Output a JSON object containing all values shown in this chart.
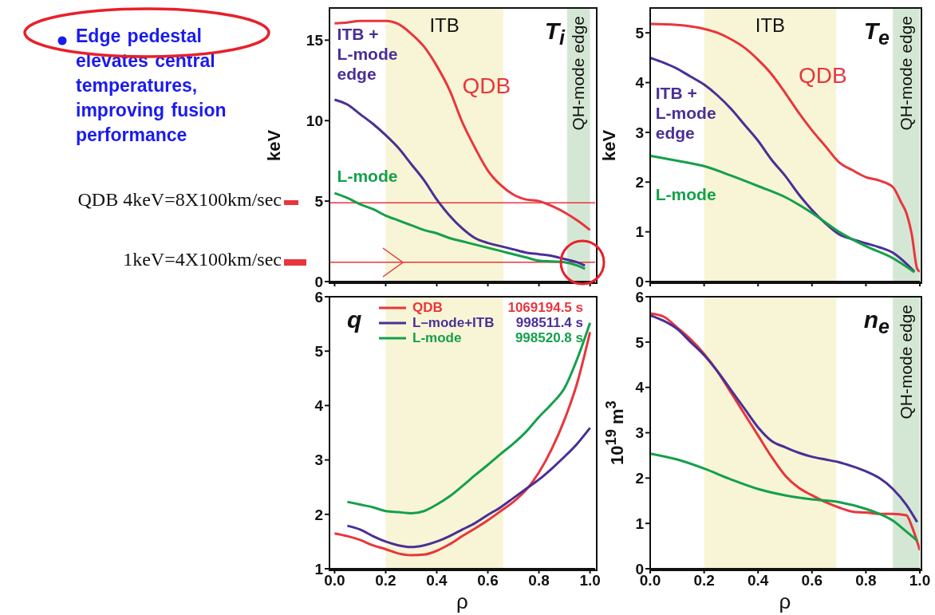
{
  "chart_data": [
    {
      "type": "line",
      "title": "T$_{i}$",
      "ylabel": "keV",
      "xlim": [
        -0.02,
        1.02
      ],
      "xticks": [
        0,
        0.2,
        0.4,
        0.6,
        0.8,
        1
      ],
      "ylim": [
        0,
        17
      ],
      "yticks": [
        0,
        5,
        10,
        15
      ],
      "tick_labels": "y",
      "grid": false,
      "legend": false,
      "bands": [
        {
          "axis": "x",
          "from": 0.2,
          "to": 0.66,
          "label": "ITB",
          "color": "#f7f5d6"
        },
        {
          "axis": "x",
          "from": 0.91,
          "to": 1.0,
          "label": "QH-mode edge",
          "color": "#d4e7d4"
        }
      ],
      "ref_lines": [
        {
          "axis": "y",
          "value": 4.9,
          "color": "#e8363c"
        },
        {
          "axis": "y",
          "value": 1.2,
          "color": "#e8363c"
        }
      ],
      "annotations": [
        "Edge  pedestal elevates  central temperatures, improving fusion performance",
        "QDB 4keV=8X100km/sec",
        "1keV=4X100km/sec"
      ],
      "series": [
        {
          "name": "QDB",
          "color": "#e8363c",
          "x": [
            0,
            0.05,
            0.1,
            0.15,
            0.2,
            0.25,
            0.3,
            0.35,
            0.4,
            0.45,
            0.5,
            0.55,
            0.6,
            0.65,
            0.7,
            0.75,
            0.8,
            0.85,
            0.9,
            0.95,
            1.0
          ],
          "values": [
            16.05,
            16.1,
            16.2,
            16.2,
            16.2,
            16.0,
            15.4,
            14.6,
            13.4,
            11.9,
            9.9,
            8.3,
            6.9,
            6.0,
            5.4,
            5.1,
            5.0,
            4.7,
            4.3,
            3.8,
            3.2
          ]
        },
        {
          "name": "ITB +\nL-mode\nedge",
          "color": "#4a2f96",
          "x": [
            0,
            0.05,
            0.1,
            0.15,
            0.2,
            0.25,
            0.3,
            0.35,
            0.4,
            0.45,
            0.5,
            0.55,
            0.6,
            0.65,
            0.7,
            0.75,
            0.8,
            0.85,
            0.9,
            0.95,
            0.98
          ],
          "values": [
            11.3,
            11.0,
            10.4,
            9.8,
            9.1,
            8.3,
            7.3,
            6.3,
            5.1,
            4.1,
            3.3,
            2.7,
            2.4,
            2.2,
            2.0,
            1.8,
            1.7,
            1.6,
            1.4,
            1.2,
            1.0
          ]
        },
        {
          "name": "L-mode",
          "color": "#14a04a",
          "x": [
            0,
            0.05,
            0.1,
            0.15,
            0.2,
            0.25,
            0.3,
            0.35,
            0.4,
            0.45,
            0.5,
            0.55,
            0.6,
            0.65,
            0.7,
            0.75,
            0.8,
            0.85,
            0.9,
            0.95,
            0.98
          ],
          "values": [
            5.5,
            5.2,
            4.8,
            4.5,
            4.1,
            3.8,
            3.5,
            3.2,
            3.0,
            2.7,
            2.5,
            2.3,
            2.1,
            1.9,
            1.7,
            1.5,
            1.3,
            1.25,
            1.2,
            1.0,
            0.8
          ]
        }
      ]
    },
    {
      "type": "line",
      "title": "T$_{e}$",
      "ylabel": "keV",
      "xlim": [
        0,
        1.0
      ],
      "xticks": [
        0,
        0.2,
        0.4,
        0.6,
        0.8,
        1
      ],
      "ylim": [
        0,
        5.5
      ],
      "yticks": [
        0,
        1,
        2,
        3,
        4,
        5
      ],
      "tick_labels": "y",
      "grid": false,
      "legend": false,
      "bands": [
        {
          "axis": "x",
          "from": 0.2,
          "to": 0.69,
          "label": "ITB",
          "color": "#f7f5d6"
        },
        {
          "axis": "x",
          "from": 0.9,
          "to": 1.0,
          "label": "QH-mode edge",
          "color": "#d4e7d4"
        }
      ],
      "series": [
        {
          "name": "QDB",
          "color": "#e8363c",
          "x": [
            0,
            0.1,
            0.2,
            0.25,
            0.3,
            0.35,
            0.4,
            0.45,
            0.5,
            0.55,
            0.6,
            0.65,
            0.7,
            0.75,
            0.8,
            0.85,
            0.9,
            0.93,
            0.95,
            0.97,
            0.99,
            1.0
          ],
          "values": [
            5.18,
            5.16,
            5.08,
            5.0,
            4.87,
            4.7,
            4.46,
            4.17,
            3.8,
            3.4,
            3.04,
            2.72,
            2.4,
            2.24,
            2.1,
            2.03,
            1.9,
            1.6,
            1.38,
            0.95,
            0.26,
            0.2
          ]
        },
        {
          "name": "ITB +\nL-mode\nedge",
          "color": "#4a2f96",
          "x": [
            0,
            0.05,
            0.1,
            0.15,
            0.2,
            0.25,
            0.3,
            0.35,
            0.4,
            0.45,
            0.5,
            0.55,
            0.6,
            0.65,
            0.7,
            0.75,
            0.8,
            0.85,
            0.9,
            0.95,
            0.98
          ],
          "values": [
            4.5,
            4.4,
            4.28,
            4.12,
            3.96,
            3.74,
            3.47,
            3.15,
            2.83,
            2.45,
            2.13,
            1.76,
            1.44,
            1.17,
            0.95,
            0.85,
            0.77,
            0.69,
            0.58,
            0.36,
            0.2
          ]
        },
        {
          "name": "L-mode",
          "color": "#14a04a",
          "x": [
            0,
            0.1,
            0.2,
            0.3,
            0.4,
            0.5,
            0.6,
            0.7,
            0.8,
            0.9,
            0.98
          ],
          "values": [
            2.53,
            2.43,
            2.32,
            2.13,
            1.92,
            1.7,
            1.38,
            1.0,
            0.71,
            0.47,
            0.19
          ]
        }
      ]
    },
    {
      "type": "line",
      "title": "q",
      "xlabel": "ρ",
      "xlim": [
        -0.02,
        1.02
      ],
      "xticks": [
        {
          "value": 0,
          "label": "0.0"
        },
        {
          "value": 0.2,
          "label": "0.2"
        },
        {
          "value": 0.4,
          "label": "0.4"
        },
        {
          "value": 0.6,
          "label": "0.6"
        },
        {
          "value": 0.8,
          "label": "0.8"
        },
        {
          "value": 1,
          "label": "1.0"
        }
      ],
      "ylim": [
        1,
        6
      ],
      "yticks": [
        1,
        2,
        3,
        4,
        5,
        6
      ],
      "grid": false,
      "legend": "top",
      "bands": [
        {
          "axis": "x",
          "from": 0.2,
          "to": 0.66,
          "color": "#f7f5d6"
        }
      ],
      "annotations": [
        "1069194.5 s",
        "998511.4 s",
        "998520.8 s"
      ],
      "series": [
        {
          "name": "QDB",
          "color": "#e8363c",
          "x": [
            0,
            0.05,
            0.1,
            0.15,
            0.2,
            0.25,
            0.3,
            0.35,
            0.4,
            0.45,
            0.5,
            0.55,
            0.6,
            0.65,
            0.7,
            0.75,
            0.8,
            0.85,
            0.9,
            0.95,
            1.0
          ],
          "values": [
            1.65,
            1.6,
            1.53,
            1.43,
            1.36,
            1.28,
            1.25,
            1.26,
            1.33,
            1.45,
            1.6,
            1.74,
            1.89,
            2.06,
            2.23,
            2.45,
            2.77,
            3.2,
            3.74,
            4.42,
            5.35
          ]
        },
        {
          "name": "L–mode+ITB",
          "color": "#4a2f96",
          "x": [
            0.05,
            0.1,
            0.15,
            0.2,
            0.25,
            0.3,
            0.35,
            0.4,
            0.45,
            0.5,
            0.55,
            0.6,
            0.65,
            0.7,
            0.75,
            0.8,
            0.85,
            0.9,
            0.95,
            1.0
          ],
          "values": [
            1.79,
            1.72,
            1.6,
            1.5,
            1.43,
            1.4,
            1.43,
            1.5,
            1.6,
            1.72,
            1.84,
            1.99,
            2.13,
            2.3,
            2.47,
            2.64,
            2.84,
            3.06,
            3.3,
            3.59
          ]
        },
        {
          "name": "L-mode",
          "color": "#14a04a",
          "x": [
            0.05,
            0.1,
            0.15,
            0.2,
            0.25,
            0.3,
            0.35,
            0.4,
            0.45,
            0.5,
            0.55,
            0.6,
            0.65,
            0.7,
            0.75,
            0.8,
            0.85,
            0.9,
            0.95,
            1.0
          ],
          "values": [
            2.23,
            2.18,
            2.13,
            2.06,
            2.04,
            2.02,
            2.06,
            2.18,
            2.33,
            2.52,
            2.72,
            2.91,
            3.11,
            3.3,
            3.52,
            3.79,
            4.03,
            4.32,
            4.86,
            5.52
          ]
        }
      ]
    },
    {
      "type": "line",
      "title": "n$_{e}$",
      "xlabel": "ρ",
      "ylabel": "10$^{19}$ m$^{3}$",
      "xlim": [
        0,
        1.0
      ],
      "xticks": [
        {
          "value": 0,
          "label": "0.0"
        },
        {
          "value": 0.2,
          "label": "0.2"
        },
        {
          "value": 0.4,
          "label": "0.4"
        },
        {
          "value": 0.6,
          "label": "0.6"
        },
        {
          "value": 0.8,
          "label": "0.8"
        },
        {
          "value": 1,
          "label": "1.0"
        }
      ],
      "ylim": [
        0,
        6
      ],
      "yticks": [
        0,
        1,
        2,
        3,
        4,
        5,
        6
      ],
      "grid": false,
      "legend": false,
      "bands": [
        {
          "axis": "x",
          "from": 0.2,
          "to": 0.69,
          "color": "#f7f5d6"
        },
        {
          "axis": "x",
          "from": 0.9,
          "to": 1.0,
          "label": "QH-mode edge",
          "color": "#d4e7d4"
        }
      ],
      "series": [
        {
          "color": "#e8363c",
          "x": [
            0,
            0.05,
            0.1,
            0.15,
            0.2,
            0.25,
            0.3,
            0.35,
            0.4,
            0.45,
            0.5,
            0.55,
            0.6,
            0.65,
            0.7,
            0.75,
            0.8,
            0.85,
            0.9,
            0.95,
            0.97,
            1.0
          ],
          "values": [
            5.63,
            5.56,
            5.32,
            5.06,
            4.74,
            4.35,
            3.88,
            3.41,
            2.94,
            2.47,
            2.06,
            1.79,
            1.62,
            1.47,
            1.35,
            1.26,
            1.24,
            1.21,
            1.21,
            1.18,
            0.94,
            0.41
          ]
        },
        {
          "color": "#4a2f96",
          "x": [
            0,
            0.05,
            0.1,
            0.15,
            0.2,
            0.25,
            0.3,
            0.35,
            0.4,
            0.45,
            0.5,
            0.55,
            0.6,
            0.65,
            0.7,
            0.75,
            0.8,
            0.85,
            0.9,
            0.95,
            0.99
          ],
          "values": [
            5.59,
            5.47,
            5.29,
            5.0,
            4.71,
            4.35,
            3.94,
            3.53,
            3.12,
            2.82,
            2.68,
            2.56,
            2.47,
            2.41,
            2.35,
            2.26,
            2.15,
            2.0,
            1.76,
            1.41,
            1.03
          ]
        },
        {
          "color": "#14a04a",
          "x": [
            0,
            0.1,
            0.2,
            0.3,
            0.4,
            0.5,
            0.6,
            0.7,
            0.8,
            0.85,
            0.9,
            0.95,
            0.99
          ],
          "values": [
            2.54,
            2.41,
            2.21,
            1.97,
            1.76,
            1.62,
            1.53,
            1.47,
            1.32,
            1.21,
            1.06,
            0.82,
            0.62
          ]
        }
      ]
    }
  ]
}
